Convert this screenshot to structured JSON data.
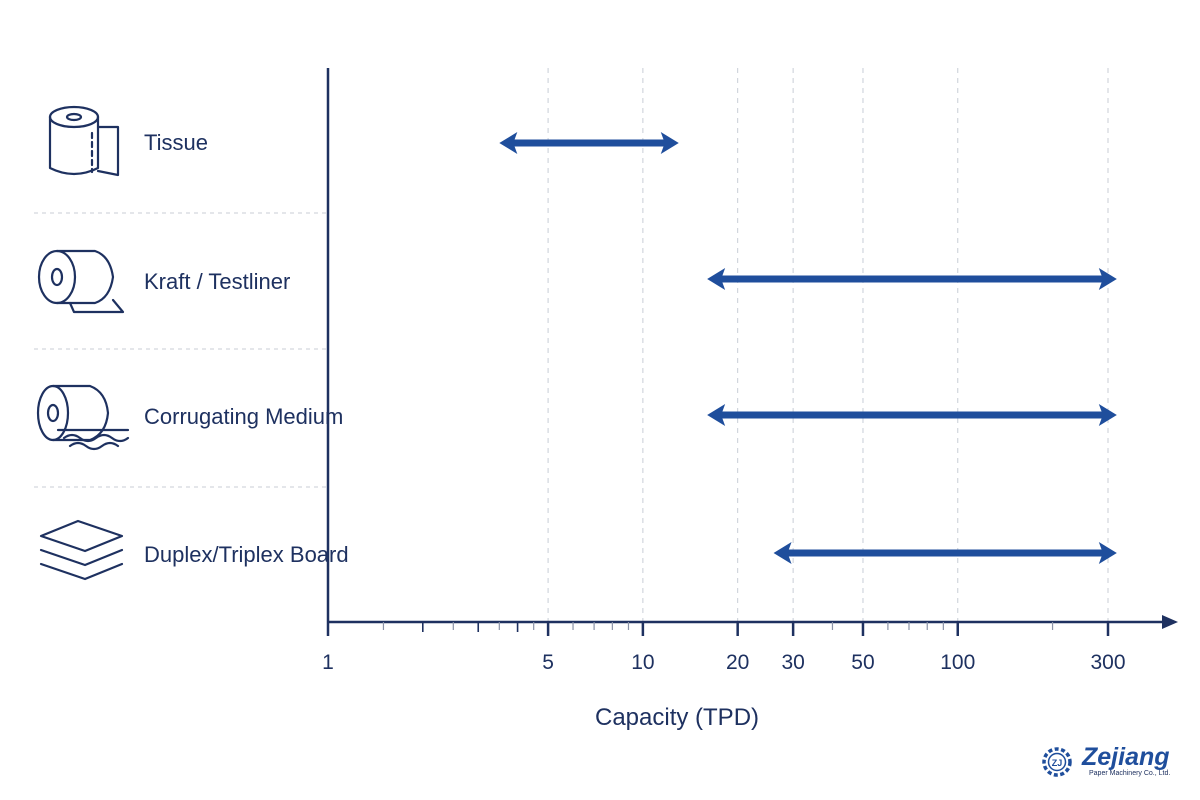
{
  "chart_data": {
    "type": "range",
    "categories": [
      "Tissue",
      "Kraft / Testliner",
      "Corrugating Medium",
      "Duplex/Triplex Board"
    ],
    "ranges": [
      [
        3.5,
        13
      ],
      [
        16,
        320
      ],
      [
        16,
        320
      ],
      [
        26,
        320
      ]
    ],
    "xlabel": "Capacity (TPD)",
    "xscale": "log",
    "xlim": [
      1,
      320
    ],
    "xticks": [
      1,
      5,
      10,
      20,
      30,
      50,
      100,
      300
    ],
    "tick_labels": [
      "1",
      "5",
      "10",
      "20",
      "30",
      "50",
      "100",
      "300"
    ],
    "grid": true,
    "icons": [
      "tissue-roll-icon",
      "kraft-roll-icon",
      "corrugated-roll-icon",
      "board-stack-icon"
    ]
  },
  "colors": {
    "accent": "#1f4e9c",
    "text": "#1e3160",
    "grid": "#c8cdd6"
  },
  "logo": {
    "name": "Zejiang",
    "subtitle": "Paper Machinery Co., Ltd.",
    "mark": "ZJ"
  }
}
